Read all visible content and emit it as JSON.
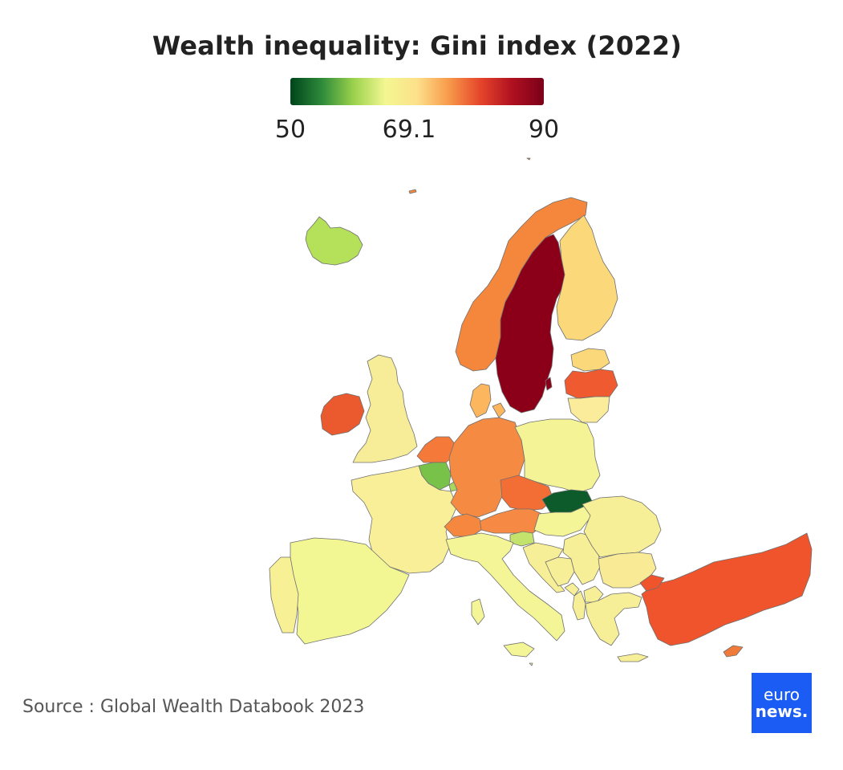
{
  "title": "Wealth inequality: Gini index (2022)",
  "legend": {
    "min": 50,
    "mid": 69.1,
    "max": 90,
    "tick_labels": [
      "50",
      "69.1",
      "90"
    ],
    "colors": [
      "#00441b",
      "#2e8b3a",
      "#9bd24c",
      "#f3f792",
      "#fde08a",
      "#f79a4a",
      "#e5452a",
      "#b01020",
      "#7a0019"
    ]
  },
  "map_data": {
    "color_scale": "RdYlGn reversed, 50 (green) to 90 (dark red)",
    "regions": [
      {
        "name": "Sweden",
        "fill": "#8b0018"
      },
      {
        "name": "Norway",
        "fill": "#f5873c"
      },
      {
        "name": "Finland",
        "fill": "#fbd97a"
      },
      {
        "name": "Iceland",
        "fill": "#b5e05a"
      },
      {
        "name": "Ireland",
        "fill": "#ea5a2e"
      },
      {
        "name": "United Kingdom",
        "fill": "#f7ed98"
      },
      {
        "name": "Netherlands",
        "fill": "#f57a3a"
      },
      {
        "name": "Belgium",
        "fill": "#79c24a"
      },
      {
        "name": "Luxembourg",
        "fill": "#a8d85c"
      },
      {
        "name": "France",
        "fill": "#f9ef99"
      },
      {
        "name": "Spain",
        "fill": "#f2f793"
      },
      {
        "name": "Portugal",
        "fill": "#f7f095"
      },
      {
        "name": "Germany",
        "fill": "#f58a42"
      },
      {
        "name": "Denmark",
        "fill": "#fbb65e"
      },
      {
        "name": "Poland",
        "fill": "#f4f497"
      },
      {
        "name": "Czechia",
        "fill": "#f26e35"
      },
      {
        "name": "Slovakia",
        "fill": "#0d5a2b"
      },
      {
        "name": "Austria",
        "fill": "#f68a44"
      },
      {
        "name": "Switzerland",
        "fill": "#f5873e"
      },
      {
        "name": "Hungary",
        "fill": "#f3f596"
      },
      {
        "name": "Slovenia",
        "fill": "#c4e36c"
      },
      {
        "name": "Italy",
        "fill": "#f3f597"
      },
      {
        "name": "Croatia",
        "fill": "#f7ef98"
      },
      {
        "name": "Bosnia and Herzegovina",
        "fill": "#f7ef98"
      },
      {
        "name": "Serbia",
        "fill": "#f7ef98"
      },
      {
        "name": "Montenegro",
        "fill": "#f7ef98"
      },
      {
        "name": "Albania",
        "fill": "#f7ef98"
      },
      {
        "name": "North Macedonia",
        "fill": "#f7ef98"
      },
      {
        "name": "Romania",
        "fill": "#f7ef98"
      },
      {
        "name": "Bulgaria",
        "fill": "#f9ea95"
      },
      {
        "name": "Greece",
        "fill": "#f7ef98"
      },
      {
        "name": "Turkey",
        "fill": "#ef542c"
      },
      {
        "name": "Cyprus",
        "fill": "#f07a3a"
      },
      {
        "name": "Estonia",
        "fill": "#fbd97a"
      },
      {
        "name": "Latvia",
        "fill": "#ef5a30"
      },
      {
        "name": "Lithuania",
        "fill": "#fbec9c"
      },
      {
        "name": "Malta",
        "fill": "#f7ef98"
      }
    ]
  },
  "source": "Source : Global Wealth Databook 2023",
  "logo": {
    "top": "euro",
    "bottom": "news."
  }
}
